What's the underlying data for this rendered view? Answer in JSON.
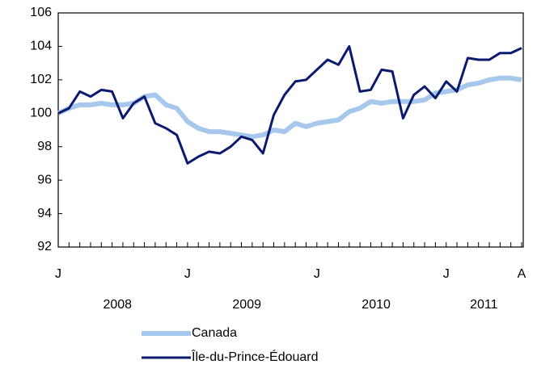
{
  "chart_data": {
    "type": "line",
    "categories": [
      "J",
      null,
      null,
      null,
      null,
      null,
      null,
      null,
      null,
      null,
      null,
      null,
      "J",
      null,
      null,
      null,
      null,
      null,
      null,
      null,
      null,
      null,
      null,
      null,
      "J",
      null,
      null,
      null,
      null,
      null,
      null,
      null,
      null,
      null,
      null,
      null,
      "J",
      null,
      null,
      null,
      null,
      null,
      null,
      "A"
    ],
    "year_labels": [
      "2008",
      "2009",
      "2010",
      "2011"
    ],
    "ylim": [
      92,
      106
    ],
    "yticks": [
      92,
      94,
      96,
      98,
      100,
      102,
      104,
      106
    ],
    "series": [
      {
        "name": "Canada",
        "color": "#a6c8ec",
        "values": [
          100.0,
          100.3,
          100.5,
          100.5,
          100.6,
          100.5,
          100.5,
          100.6,
          101.0,
          101.1,
          100.5,
          100.3,
          99.5,
          99.1,
          98.9,
          98.9,
          98.8,
          98.7,
          98.6,
          98.7,
          99.0,
          98.9,
          99.4,
          99.2,
          99.4,
          99.5,
          99.6,
          100.1,
          100.3,
          100.7,
          100.6,
          100.7,
          100.7,
          100.7,
          100.8,
          101.2,
          101.3,
          101.4,
          101.7,
          101.8,
          102.0,
          102.1,
          102.1,
          102.0
        ]
      },
      {
        "name": "Île-du-Prince-Édouard",
        "color": "#0a1a6e",
        "values": [
          100.0,
          100.3,
          101.3,
          101.0,
          101.4,
          101.3,
          99.7,
          100.6,
          101.0,
          99.4,
          99.1,
          98.7,
          97.0,
          97.4,
          97.7,
          97.6,
          98.0,
          98.6,
          98.4,
          97.6,
          99.9,
          101.1,
          101.9,
          102.0,
          102.6,
          103.2,
          102.9,
          104.0,
          101.3,
          101.4,
          102.6,
          102.5,
          99.7,
          101.1,
          101.6,
          100.9,
          101.9,
          101.3,
          103.3,
          103.2,
          103.2,
          103.6,
          103.6,
          103.9
        ]
      }
    ]
  }
}
